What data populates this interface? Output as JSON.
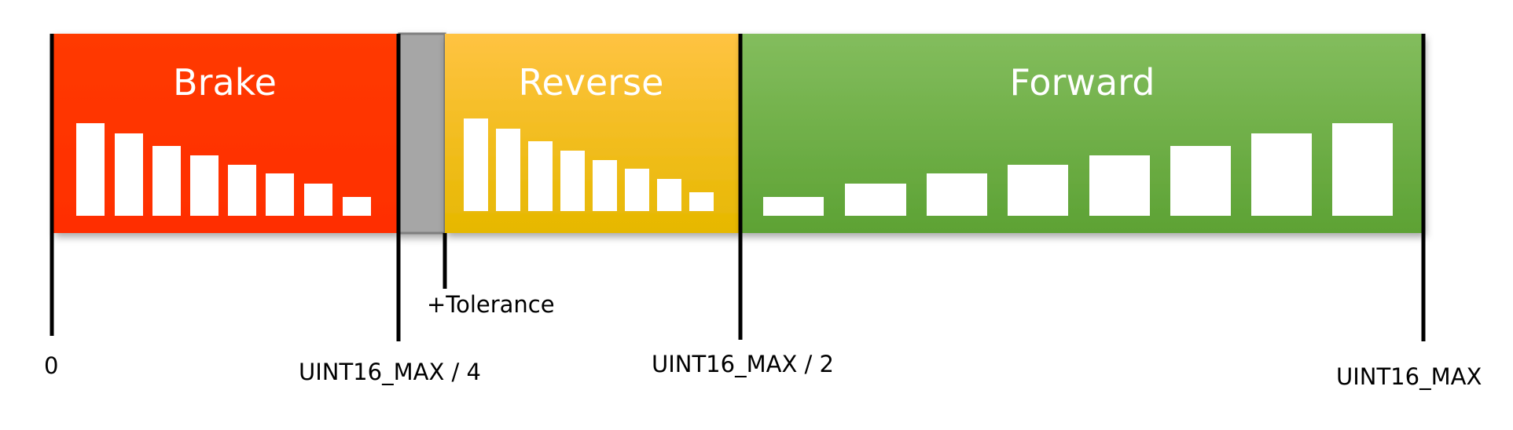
{
  "zones": [
    {
      "id": "brake",
      "title": "Brake",
      "color_top": "#ff3a00",
      "color_bottom": "#ff2e00",
      "bar_trend": "decreasing",
      "bar_count": 8
    },
    {
      "id": "tolerance",
      "title": "",
      "color_top": "#a6a6a6",
      "color_bottom": "#a6a6a6"
    },
    {
      "id": "reverse",
      "title": "Reverse",
      "color_top": "#ffc342",
      "color_bottom": "#e6b800",
      "bar_trend": "decreasing",
      "bar_count": 8
    },
    {
      "id": "forward",
      "title": "Forward",
      "color_top": "#83bd5d",
      "color_bottom": "#5da234",
      "bar_trend": "increasing",
      "bar_count": 8
    }
  ],
  "markers": {
    "zero": "0",
    "quarter": "UINT16_MAX / 4",
    "tolerance": "+Tolerance",
    "half": "UINT16_MAX / 2",
    "max": "UINT16_MAX"
  },
  "colors": {
    "marker_line": "#000000",
    "bar": "#ffffff"
  }
}
